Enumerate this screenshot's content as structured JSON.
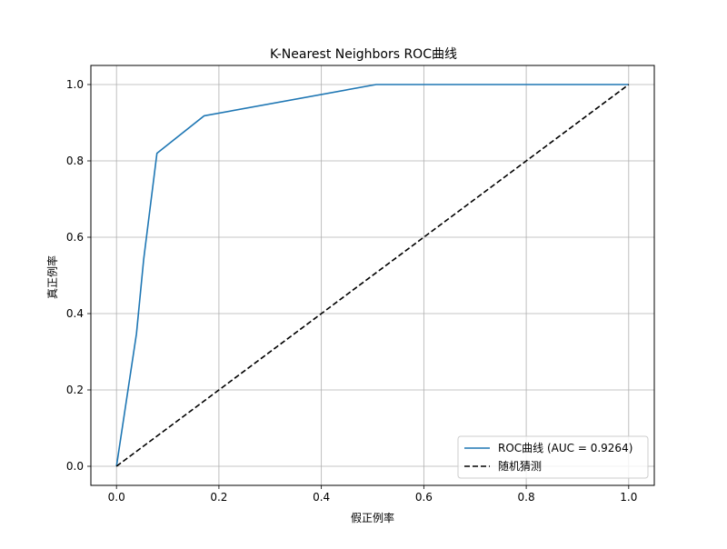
{
  "chart_data": {
    "type": "line",
    "title": "K-Nearest Neighbors ROC曲线",
    "xlabel": "假正例率",
    "ylabel": "真正例率",
    "xlim": [
      -0.05,
      1.05
    ],
    "ylim": [
      -0.05,
      1.05
    ],
    "xticks": [
      0.0,
      0.2,
      0.4,
      0.6,
      0.8,
      1.0
    ],
    "yticks": [
      0.0,
      0.2,
      0.4,
      0.6,
      0.8,
      1.0
    ],
    "xtick_labels": [
      "0.0",
      "0.2",
      "0.4",
      "0.6",
      "0.8",
      "1.0"
    ],
    "ytick_labels": [
      "0.0",
      "0.2",
      "0.4",
      "0.6",
      "0.8",
      "1.0"
    ],
    "grid": true,
    "legend_position": "lower-right",
    "series": [
      {
        "name": "ROC曲线 (AUC = 0.9264)",
        "color": "#1f77b4",
        "style": "solid",
        "x": [
          0.0,
          0.039,
          0.053,
          0.079,
          0.171,
          0.507,
          1.0
        ],
        "y": [
          0.0,
          0.347,
          0.541,
          0.82,
          0.918,
          1.0,
          1.0
        ]
      },
      {
        "name": "随机猜测",
        "color": "#000000",
        "style": "dashed",
        "x": [
          0.0,
          1.0
        ],
        "y": [
          0.0,
          1.0
        ]
      }
    ]
  }
}
